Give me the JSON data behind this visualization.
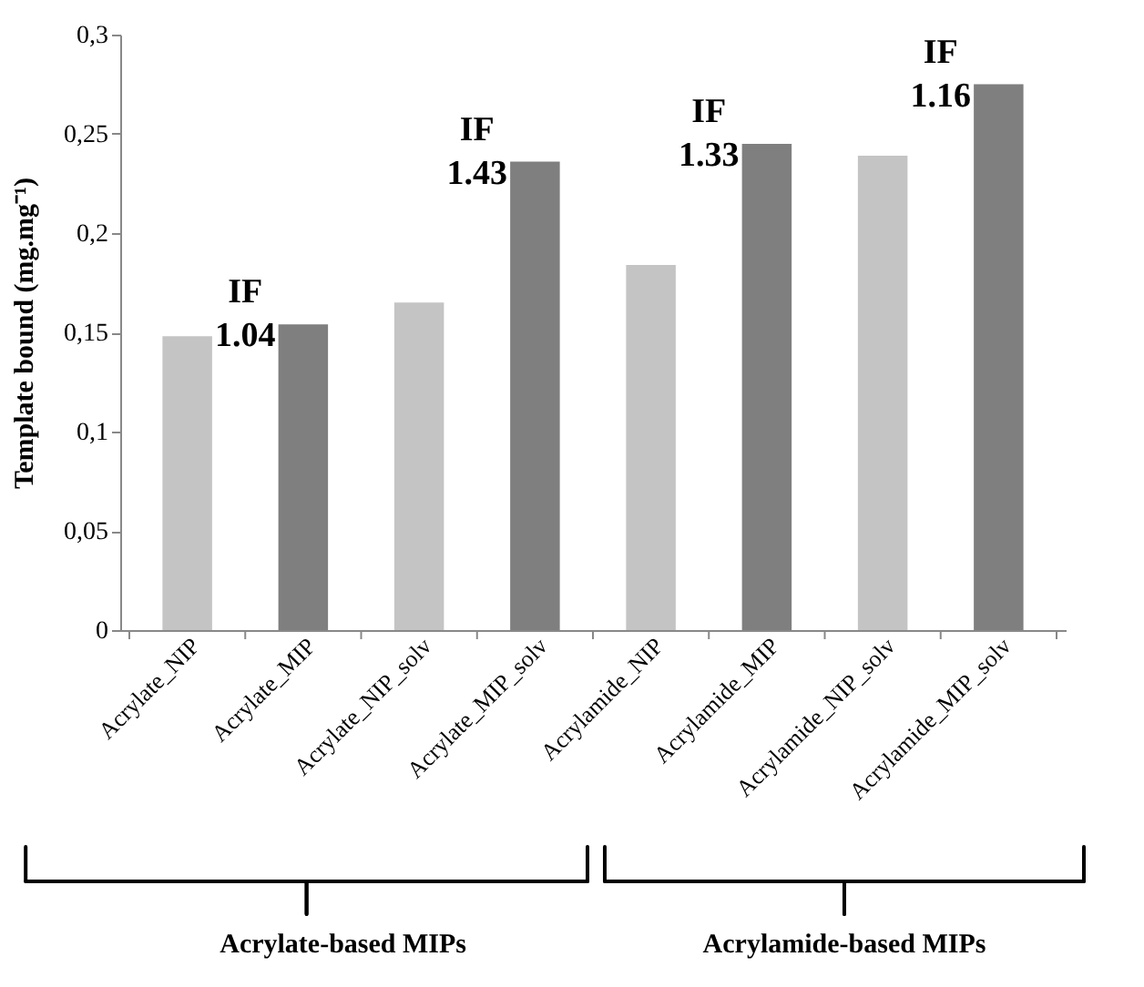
{
  "chart_data": {
    "type": "bar",
    "ylabel": "Template bound (mg.mg⁻¹)",
    "categories": [
      "Acrylate_NIP",
      "Acrylate_MIP",
      "Acrylate_NIP_solv",
      "Acrylate_MIP_solv",
      "Acrylamide_NIP",
      "Acrylamide_MIP",
      "Acrylamide_NIP_solv",
      "Acrylamide_MIP_solv"
    ],
    "values": [
      0.148,
      0.154,
      0.165,
      0.236,
      0.184,
      0.245,
      0.239,
      0.275
    ],
    "colors": [
      "#c4c4c4",
      "#7f7f7f",
      "#c4c4c4",
      "#7f7f7f",
      "#c4c4c4",
      "#7f7f7f",
      "#c4c4c4",
      "#7f7f7f"
    ],
    "ylim": [
      0,
      0.3
    ],
    "yticks": [
      0,
      {
        "value": 0.05,
        "label": "0,05"
      },
      {
        "value": 0.1,
        "label": "0,1"
      },
      {
        "value": 0.15,
        "label": "0,15"
      },
      {
        "value": 0.2,
        "label": "0,2"
      },
      {
        "value": 0.25,
        "label": "0,25"
      },
      {
        "value": 0.3,
        "label": "0,3"
      }
    ],
    "grid": false,
    "annotations": [
      "IF\n1.04",
      "IF\n1.43",
      "IF\n1.33",
      "IF\n1.16",
      "Acrylate-based MIPs",
      "Acrylamide-based MIPs"
    ]
  }
}
